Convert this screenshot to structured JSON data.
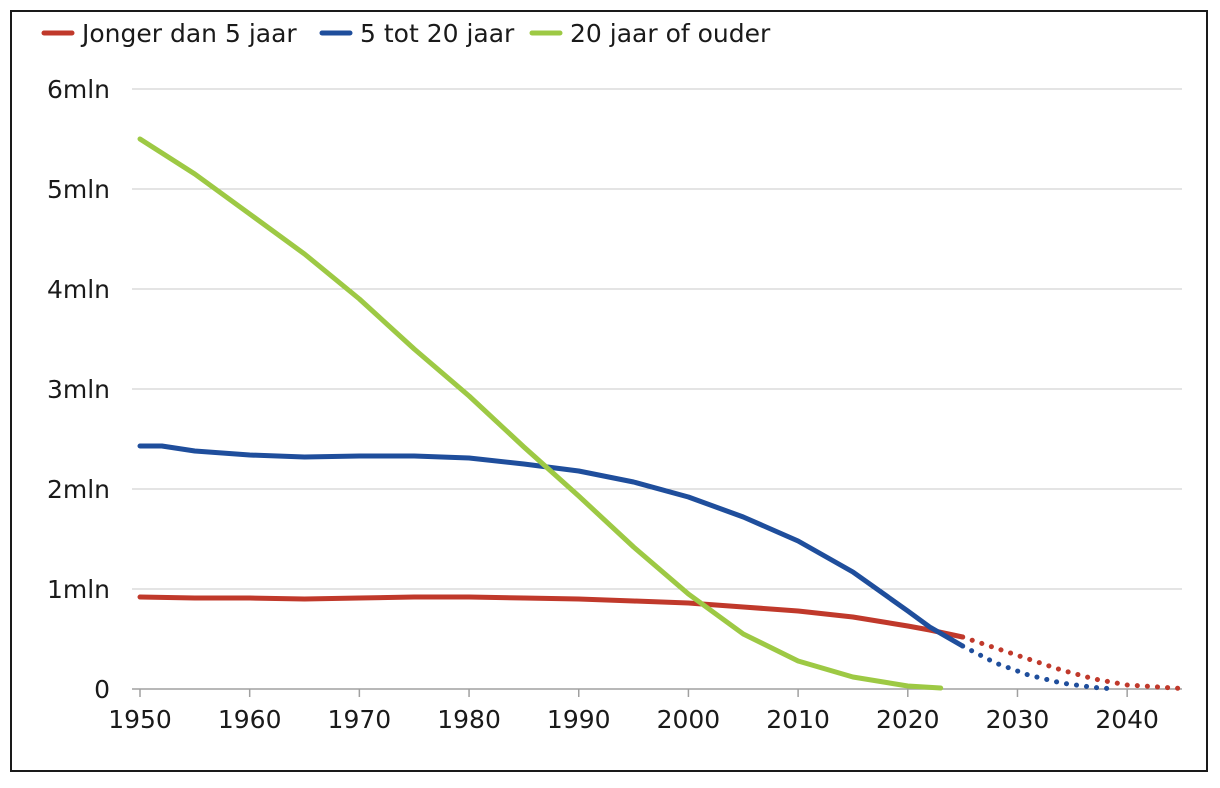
{
  "chart_data": {
    "type": "line",
    "title": "",
    "xlabel": "",
    "ylabel": "",
    "xlim": [
      1950,
      2045
    ],
    "ylim": [
      0,
      6
    ],
    "x_ticks": [
      1950,
      1960,
      1970,
      1980,
      1990,
      2000,
      2010,
      2020,
      2030,
      2040
    ],
    "x_tick_labels": [
      "1950",
      "1960",
      "1970",
      "1980",
      "1990",
      "2000",
      "2010",
      "2020",
      "2030",
      "2040"
    ],
    "y_ticks": [
      0,
      1,
      2,
      3,
      4,
      5,
      6
    ],
    "y_tick_labels": [
      "0",
      "1mln",
      "2mln",
      "3mln",
      "4mln",
      "5mln",
      "6mln"
    ],
    "grid": "horizontal",
    "legend_position": "top-left",
    "note": "",
    "series": [
      {
        "name": "Jonger dan 5 jaar",
        "color": "#c0392b",
        "style_note": "",
        "points": [
          [
            1950,
            0.92
          ],
          [
            1955,
            0.91
          ],
          [
            1960,
            0.91
          ],
          [
            1965,
            0.9
          ],
          [
            1970,
            0.91
          ],
          [
            1975,
            0.92
          ],
          [
            1980,
            0.92
          ],
          [
            1985,
            0.91
          ],
          [
            1990,
            0.9
          ],
          [
            1995,
            0.88
          ],
          [
            2000,
            0.86
          ],
          [
            2005,
            0.82
          ],
          [
            2010,
            0.78
          ],
          [
            2015,
            0.72
          ],
          [
            2020,
            0.63
          ],
          [
            2022,
            0.59
          ],
          [
            2025,
            0.52
          ]
        ],
        "projection": [
          [
            2025,
            0.52
          ],
          [
            2028,
            0.41
          ],
          [
            2031,
            0.3
          ],
          [
            2034,
            0.19
          ],
          [
            2037,
            0.1
          ],
          [
            2040,
            0.04
          ],
          [
            2045,
            0.005
          ]
        ]
      },
      {
        "name": "5 tot 20 jaar",
        "color": "#1f4e9c",
        "style_note": "",
        "points": [
          [
            1950,
            2.43
          ],
          [
            1952,
            2.43
          ],
          [
            1955,
            2.38
          ],
          [
            1960,
            2.34
          ],
          [
            1965,
            2.32
          ],
          [
            1970,
            2.33
          ],
          [
            1975,
            2.33
          ],
          [
            1980,
            2.31
          ],
          [
            1985,
            2.25
          ],
          [
            1990,
            2.18
          ],
          [
            1995,
            2.07
          ],
          [
            2000,
            1.92
          ],
          [
            2005,
            1.72
          ],
          [
            2010,
            1.48
          ],
          [
            2015,
            1.17
          ],
          [
            2020,
            0.78
          ],
          [
            2022,
            0.62
          ],
          [
            2025,
            0.43
          ]
        ],
        "projection": [
          [
            2025,
            0.43
          ],
          [
            2028,
            0.26
          ],
          [
            2031,
            0.14
          ],
          [
            2034,
            0.06
          ],
          [
            2037,
            0.015
          ],
          [
            2039,
            0.0
          ]
        ]
      },
      {
        "name": "20 jaar of ouder",
        "color": "#9dc944",
        "style_note": "",
        "points": [
          [
            1950,
            5.5
          ],
          [
            1955,
            5.15
          ],
          [
            1960,
            4.75
          ],
          [
            1965,
            4.35
          ],
          [
            1970,
            3.9
          ],
          [
            1975,
            3.4
          ],
          [
            1980,
            2.93
          ],
          [
            1985,
            2.42
          ],
          [
            1990,
            1.93
          ],
          [
            1995,
            1.42
          ],
          [
            2000,
            0.95
          ],
          [
            2005,
            0.55
          ],
          [
            2010,
            0.28
          ],
          [
            2015,
            0.12
          ],
          [
            2020,
            0.03
          ],
          [
            2023,
            0.01
          ]
        ],
        "projection": []
      }
    ]
  }
}
